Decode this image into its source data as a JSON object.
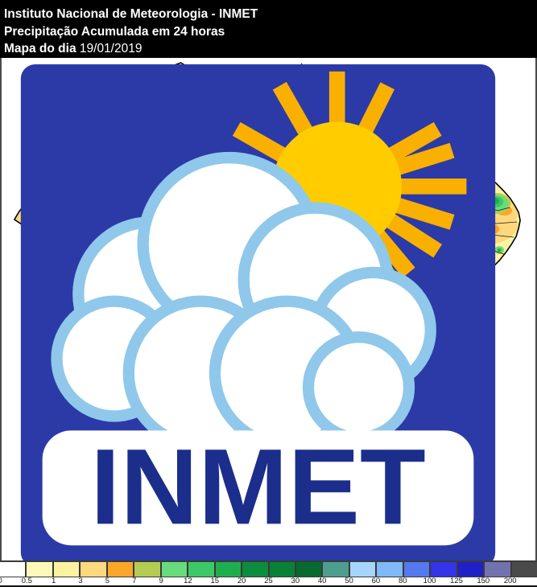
{
  "header": {
    "line1": "Instituto Nacional de Meteorologia - INMET",
    "line2": "Precipitação Acumulada em 24 horas",
    "line3_label": "Mapa do dia",
    "line3_date": "19/01/2019",
    "bg_color": "#000000",
    "text_color": "#FFFFFF"
  },
  "logo": {
    "text": "INMET",
    "bg_color": "#2B3AA6",
    "sun_color": "#FFCC00",
    "ray_color": "#F9B000",
    "cloud_outline": "#8FC8EA",
    "text_color": "#1B2E8C"
  },
  "map": {
    "name": "brazil-24h-accumulated-precipitation-map",
    "outline_color": "#000000",
    "state_border_color": "#1a1a1a",
    "water_color": "#101010",
    "base_fill": "#FBF3A4"
  },
  "legend": {
    "labels": [
      "0",
      "0.5",
      "1",
      "3",
      "5",
      "7",
      "9",
      "12",
      "15",
      "20",
      "25",
      "30",
      "40",
      "50",
      "60",
      "80",
      "100",
      "125",
      "150",
      "200"
    ],
    "colors": [
      "#FFFFFF",
      "#FDF9B8",
      "#FCF2A0",
      "#FDD87D",
      "#FCA62A",
      "#B5CB51",
      "#67DC7C",
      "#3DC867",
      "#1FAE4E",
      "#0C8C3D",
      "#098038",
      "#076B31",
      "#4D9E8F",
      "#A5D5FA",
      "#7FB9F7",
      "#5678F0",
      "#3434E8",
      "#2020C8",
      "#7272AE",
      "#4A4A4A"
    ]
  }
}
